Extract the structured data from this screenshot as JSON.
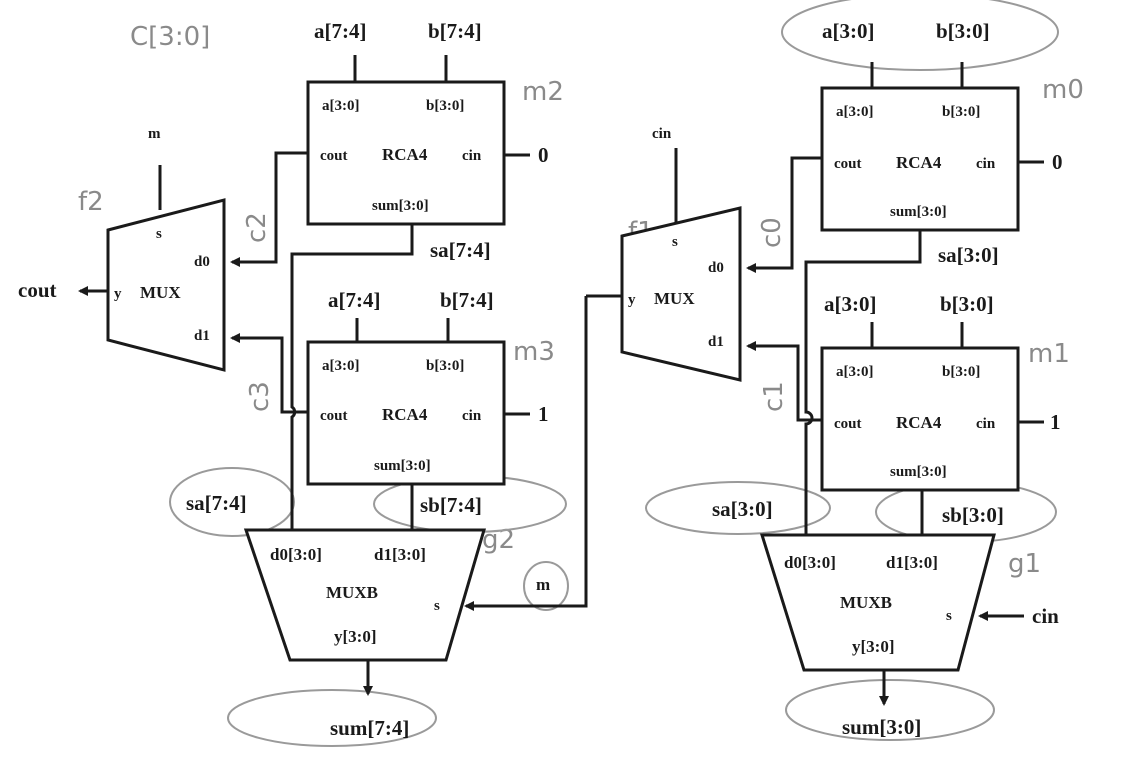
{
  "colors": {
    "ink": "#1a1a1a",
    "pencil": "#8a8a8a",
    "paper": "#ffffff"
  },
  "left": {
    "top_note": "C[3:0]",
    "top_a": "a[7:4]",
    "top_b": "b[7:4]",
    "rca_top": {
      "a": "a[3:0]",
      "b": "b[3:0]",
      "cout": "cout",
      "name": "RCA4",
      "cin": "cin",
      "sum": "sum[3:0]",
      "cin_val": "0",
      "tag": "m2"
    },
    "mux": {
      "sel": "m",
      "tag": "f2",
      "s": "s",
      "d0": "d0",
      "d1": "d1",
      "y": "y",
      "name": "MUX",
      "out": "cout",
      "c2": "c2",
      "c3": "c3"
    },
    "sa_mid": "sa[7:4]",
    "mid_a": "a[7:4]",
    "mid_b": "b[7:4]",
    "rca_bot": {
      "a": "a[3:0]",
      "b": "b[3:0]",
      "cout": "cout",
      "name": "RCA4",
      "cin": "cin",
      "sum": "sum[3:0]",
      "cin_val": "1",
      "tag": "m3"
    },
    "sa_bot": "sa[7:4]",
    "sb_bot": "sb[7:4]",
    "muxb": {
      "d0": "d0[3:0]",
      "d1": "d1[3:0]",
      "name": "MUXB",
      "s": "s",
      "y": "y[3:0]",
      "tag": "g2",
      "sel": "m"
    },
    "out": "sum[7:4]"
  },
  "right": {
    "top_a": "a[3:0]",
    "top_b": "b[3:0]",
    "rca_top": {
      "a": "a[3:0]",
      "b": "b[3:0]",
      "cout": "cout",
      "name": "RCA4",
      "cin": "cin",
      "sum": "sum[3:0]",
      "cin_val": "0",
      "tag": "m0"
    },
    "mux": {
      "sel": "cin",
      "tag": "f1",
      "s": "s",
      "d0": "d0",
      "d1": "d1",
      "y": "y",
      "name": "MUX",
      "c0": "c0",
      "c1": "c1"
    },
    "sa_mid": "sa[3:0]",
    "mid_a": "a[3:0]",
    "mid_b": "b[3:0]",
    "rca_bot": {
      "a": "a[3:0]",
      "b": "b[3:0]",
      "cout": "cout",
      "name": "RCA4",
      "cin": "cin",
      "sum": "sum[3:0]",
      "cin_val": "1",
      "tag": "m1"
    },
    "sa_bot": "sa[3:0]",
    "sb_bot": "sb[3:0]",
    "muxb": {
      "d0": "d0[3:0]",
      "d1": "d1[3:0]",
      "name": "MUXB",
      "s": "s",
      "y": "y[3:0]",
      "tag": "g1",
      "sel": "cin"
    },
    "out": "sum[3:0]"
  }
}
